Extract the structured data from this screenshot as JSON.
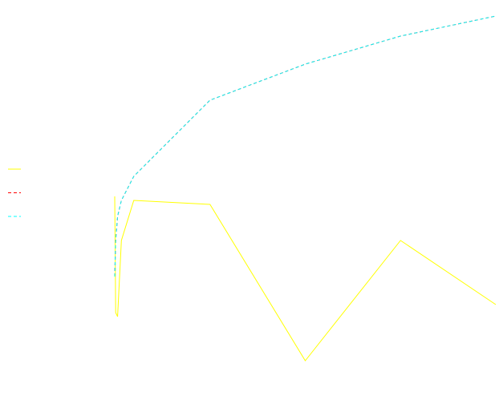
{
  "chart_data": {
    "type": "line",
    "x": [
      0,
      1,
      3,
      7,
      20,
      100,
      200,
      300,
      400
    ],
    "series": [
      {
        "color": "#ffff00",
        "linestyle": "solid",
        "values": [
          51,
          22,
          21,
          40,
          50,
          49,
          10,
          40,
          24
        ]
      },
      {
        "color": "#ff0000",
        "linestyle": "dashed",
        "values": [
          31,
          40,
          46,
          50,
          56,
          75,
          84,
          91,
          96
        ]
      },
      {
        "color": "#00ffff",
        "linestyle": "dashed",
        "values": [
          31,
          40,
          46,
          50,
          56,
          75,
          84,
          91,
          96
        ]
      }
    ],
    "xlim": [
      0,
      400
    ],
    "ylim": [
      0,
      100
    ],
    "legend": "left"
  }
}
